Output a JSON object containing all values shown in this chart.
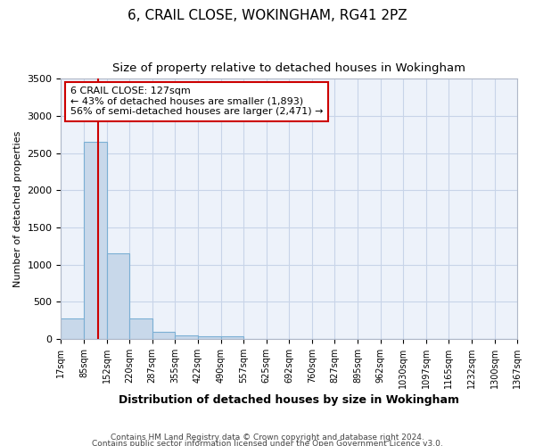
{
  "title": "6, CRAIL CLOSE, WOKINGHAM, RG41 2PZ",
  "subtitle": "Size of property relative to detached houses in Wokingham",
  "xlabel": "Distribution of detached houses by size in Wokingham",
  "ylabel": "Number of detached properties",
  "footnote1": "Contains HM Land Registry data © Crown copyright and database right 2024.",
  "footnote2": "Contains public sector information licensed under the Open Government Licence v3.0.",
  "bin_edges": [
    17,
    85,
    152,
    220,
    287,
    355,
    422,
    490,
    557,
    625,
    692,
    760,
    827,
    895,
    962,
    1030,
    1097,
    1165,
    1232,
    1300,
    1367
  ],
  "bar_heights": [
    270,
    2650,
    1150,
    275,
    90,
    50,
    35,
    30,
    0,
    0,
    0,
    0,
    0,
    0,
    0,
    0,
    0,
    0,
    0,
    0
  ],
  "bar_color": "#c8d8ea",
  "bar_edge_color": "#7bafd4",
  "property_size": 127,
  "vline_color": "#cc0000",
  "annotation_text": "6 CRAIL CLOSE: 127sqm\n← 43% of detached houses are smaller (1,893)\n56% of semi-detached houses are larger (2,471) →",
  "annotation_border_color": "#cc0000",
  "ylim": [
    0,
    3500
  ],
  "yticks": [
    0,
    500,
    1000,
    1500,
    2000,
    2500,
    3000,
    3500
  ],
  "grid_color": "#c8d4e8",
  "background_color": "#edf2fa",
  "title_fontsize": 11,
  "subtitle_fontsize": 9.5,
  "ylabel_fontsize": 8,
  "xlabel_fontsize": 9,
  "tick_fontsize": 7,
  "footnote_fontsize": 6.5,
  "tick_labels": [
    "17sqm",
    "85sqm",
    "152sqm",
    "220sqm",
    "287sqm",
    "355sqm",
    "422sqm",
    "490sqm",
    "557sqm",
    "625sqm",
    "692sqm",
    "760sqm",
    "827sqm",
    "895sqm",
    "962sqm",
    "1030sqm",
    "1097sqm",
    "1165sqm",
    "1232sqm",
    "1300sqm",
    "1367sqm"
  ]
}
